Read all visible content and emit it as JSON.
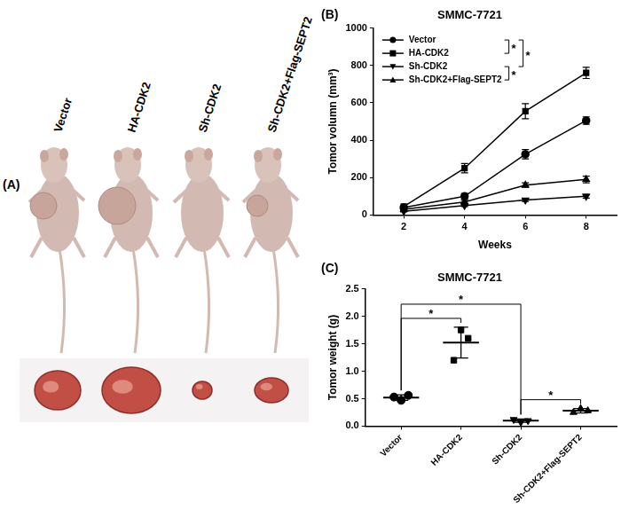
{
  "figure_panels": {
    "A": {
      "label": "(A)",
      "groups": [
        "Vector",
        "HA-CDK2",
        "Sh-CDK2",
        "Sh-CDK2+Flag-SEPT2"
      ]
    }
  },
  "chart_data": [
    {
      "type": "line",
      "panel_label": "(B)",
      "title": "SMMC-7721",
      "x_label": "Weeks",
      "y_label": "Tomor volumn (mm³)",
      "x": [
        2,
        4,
        6,
        8
      ],
      "xlim": [
        1,
        9
      ],
      "xticks": [
        2,
        4,
        6,
        8
      ],
      "ylim": [
        0,
        1000
      ],
      "yticks": [
        0,
        200,
        400,
        600,
        800,
        1000
      ],
      "grid": false,
      "legend": "upper left",
      "series": [
        {
          "name": "Vector",
          "color": "#000000",
          "marker": "circle",
          "values": [
            40,
            100,
            325,
            505
          ],
          "errors": [
            5,
            15,
            25,
            20
          ]
        },
        {
          "name": "HA-CDK2",
          "color": "#000000",
          "marker": "square",
          "values": [
            45,
            250,
            555,
            760
          ],
          "errors": [
            5,
            25,
            40,
            30
          ]
        },
        {
          "name": "Sh-CDK2",
          "color": "#000000",
          "marker": "triangle_down",
          "values": [
            20,
            50,
            80,
            100
          ],
          "errors": [
            3,
            5,
            8,
            10
          ]
        },
        {
          "name": "Sh-CDK2+Flag-SEPT2",
          "color": "#000000",
          "marker": "triangle_up",
          "values": [
            30,
            70,
            160,
            190
          ],
          "errors": [
            4,
            8,
            12,
            18
          ]
        }
      ],
      "significance": [
        {
          "from": "Vector",
          "to": "HA-CDK2",
          "label": "*"
        },
        {
          "from": "Vector",
          "to": "Sh-CDK2",
          "label": "*"
        },
        {
          "from": "Sh-CDK2",
          "to": "Sh-CDK2+Flag-SEPT2",
          "label": "*"
        }
      ]
    },
    {
      "type": "scatter",
      "panel_label": "(C)",
      "title": "SMMC-7721",
      "y_label": "Tomor weight (g)",
      "categories": [
        "Vector",
        "HA-CDK2",
        "Sh-CDK2",
        "Sh-CDK2+Flag-SEPT2"
      ],
      "color": "#000000",
      "series": [
        {
          "marker": "circle",
          "points": [
            0.53,
            0.47,
            0.56
          ],
          "mean": 0.52,
          "sd": 0.05
        },
        {
          "marker": "square",
          "points": [
            1.2,
            1.75,
            1.6
          ],
          "mean": 1.52,
          "sd": 0.28
        },
        {
          "marker": "triangle_down",
          "points": [
            0.12,
            0.07,
            0.1
          ],
          "mean": 0.1,
          "sd": 0.03
        },
        {
          "marker": "triangle_up",
          "points": [
            0.25,
            0.32,
            0.28
          ],
          "mean": 0.28,
          "sd": 0.04
        }
      ],
      "ylim": [
        0,
        2.5
      ],
      "yticks": [
        {
          "value": 0,
          "label": "0.0"
        },
        0.5,
        {
          "value": 1,
          "label": "1.0"
        },
        1.5,
        {
          "value": 2,
          "label": "2.0"
        },
        2.5
      ],
      "grid": false,
      "significance": [
        {
          "from": "Vector",
          "to": "HA-CDK2",
          "label": "*"
        },
        {
          "from": "Vector",
          "to": "Sh-CDK2",
          "label": "*"
        },
        {
          "from": "Sh-CDK2",
          "to": "Sh-CDK2+Flag-SEPT2",
          "label": "*"
        }
      ]
    }
  ]
}
